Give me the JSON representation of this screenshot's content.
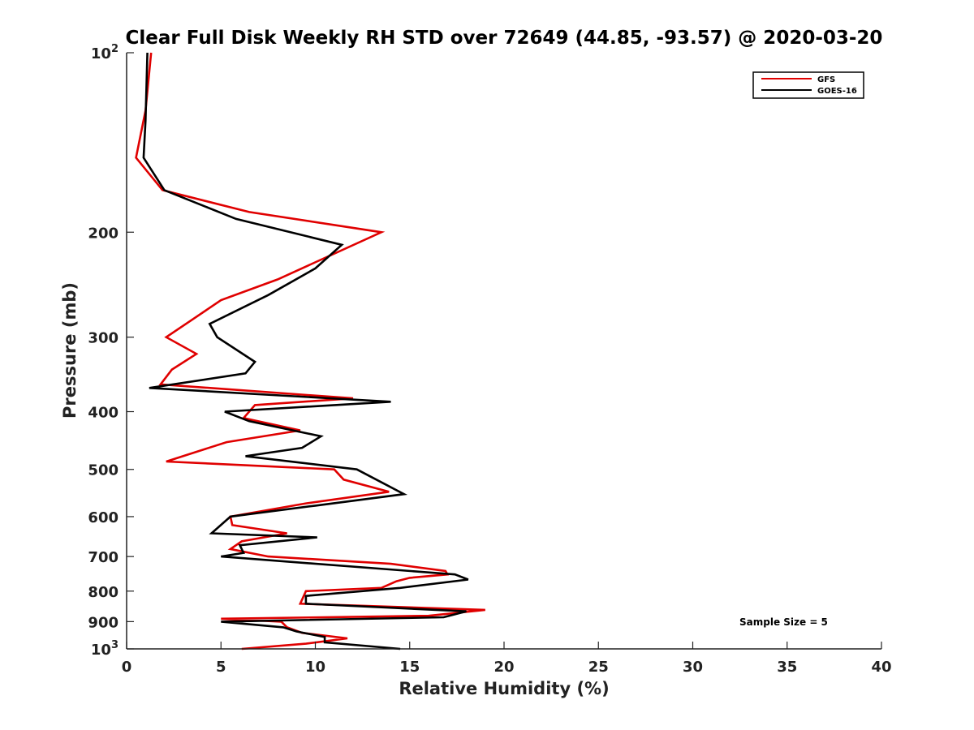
{
  "chart_data": {
    "type": "line",
    "title": "Clear Full Disk Weekly RH STD over 72649 (44.85, -93.57) @ 2020-03-20",
    "xlabel": "Relative Humidity (%)",
    "ylabel": "Pressure (mb)",
    "xlim": [
      0,
      40
    ],
    "ylim": [
      100,
      1000
    ],
    "y_scale": "log",
    "y_reversed": true,
    "x_ticks": [
      "0",
      "5",
      "10",
      "15",
      "20",
      "25",
      "30",
      "35",
      "40"
    ],
    "y_ticks": [
      {
        "value": 100,
        "base": "10",
        "exp": "2"
      },
      {
        "value": 200,
        "label": "200"
      },
      {
        "value": 300,
        "label": "300"
      },
      {
        "value": 400,
        "label": "400"
      },
      {
        "value": 500,
        "label": "500"
      },
      {
        "value": 600,
        "label": "600"
      },
      {
        "value": 700,
        "label": "700"
      },
      {
        "value": 800,
        "label": "800"
      },
      {
        "value": 900,
        "label": "900"
      },
      {
        "value": 1000,
        "base": "10",
        "exp": "3"
      }
    ],
    "legend_position": "top-right",
    "grid": false,
    "annotation": "Sample Size = 5",
    "series": [
      {
        "name": "GFS",
        "color": "#e00000",
        "points": [
          [
            1.3,
            100
          ],
          [
            1.0,
            125
          ],
          [
            0.5,
            150
          ],
          [
            1.9,
            170
          ],
          [
            6.5,
            185
          ],
          [
            13.5,
            200
          ],
          [
            8.0,
            240
          ],
          [
            5.0,
            260
          ],
          [
            3.5,
            280
          ],
          [
            2.1,
            300
          ],
          [
            3.7,
            320
          ],
          [
            2.4,
            340
          ],
          [
            1.8,
            360
          ],
          [
            12.0,
            380
          ],
          [
            6.8,
            390
          ],
          [
            6.2,
            410
          ],
          [
            9.2,
            430
          ],
          [
            5.3,
            450
          ],
          [
            2.1,
            485
          ],
          [
            11.0,
            500
          ],
          [
            11.5,
            520
          ],
          [
            13.9,
            545
          ],
          [
            9.5,
            570
          ],
          [
            5.5,
            600
          ],
          [
            5.6,
            620
          ],
          [
            8.5,
            640
          ],
          [
            6.1,
            660
          ],
          [
            5.5,
            680
          ],
          [
            7.5,
            700
          ],
          [
            14.0,
            720
          ],
          [
            16.9,
            740
          ],
          [
            17.0,
            750
          ],
          [
            15.0,
            760
          ],
          [
            14.3,
            770
          ],
          [
            13.5,
            790
          ],
          [
            9.5,
            800
          ],
          [
            9.2,
            840
          ],
          [
            19.0,
            860
          ],
          [
            16.0,
            880
          ],
          [
            5.0,
            890
          ],
          [
            8.2,
            900
          ],
          [
            8.5,
            920
          ],
          [
            9.3,
            940
          ],
          [
            11.7,
            960
          ],
          [
            9.5,
            980
          ],
          [
            6.1,
            1000
          ]
        ]
      },
      {
        "name": "GOES-16",
        "color": "#000000",
        "points": [
          [
            1.1,
            100
          ],
          [
            1.0,
            130
          ],
          [
            0.9,
            150
          ],
          [
            2.0,
            170
          ],
          [
            5.8,
            190
          ],
          [
            11.4,
            210
          ],
          [
            10.0,
            230
          ],
          [
            7.5,
            255
          ],
          [
            4.4,
            285
          ],
          [
            4.8,
            300
          ],
          [
            6.8,
            330
          ],
          [
            6.3,
            345
          ],
          [
            1.2,
            365
          ],
          [
            14.0,
            385
          ],
          [
            5.2,
            400
          ],
          [
            6.5,
            415
          ],
          [
            10.3,
            440
          ],
          [
            9.3,
            460
          ],
          [
            6.3,
            475
          ],
          [
            12.2,
            500
          ],
          [
            14.7,
            550
          ],
          [
            10.0,
            575
          ],
          [
            5.5,
            600
          ],
          [
            4.5,
            640
          ],
          [
            10.1,
            650
          ],
          [
            6.0,
            670
          ],
          [
            6.2,
            690
          ],
          [
            5.0,
            700
          ],
          [
            17.4,
            750
          ],
          [
            18.1,
            765
          ],
          [
            14.5,
            790
          ],
          [
            9.5,
            815
          ],
          [
            9.5,
            840
          ],
          [
            18.0,
            865
          ],
          [
            16.8,
            885
          ],
          [
            5.0,
            900
          ],
          [
            8.3,
            920
          ],
          [
            9.0,
            935
          ],
          [
            10.5,
            955
          ],
          [
            10.5,
            975
          ],
          [
            14.5,
            1000
          ]
        ]
      }
    ]
  }
}
